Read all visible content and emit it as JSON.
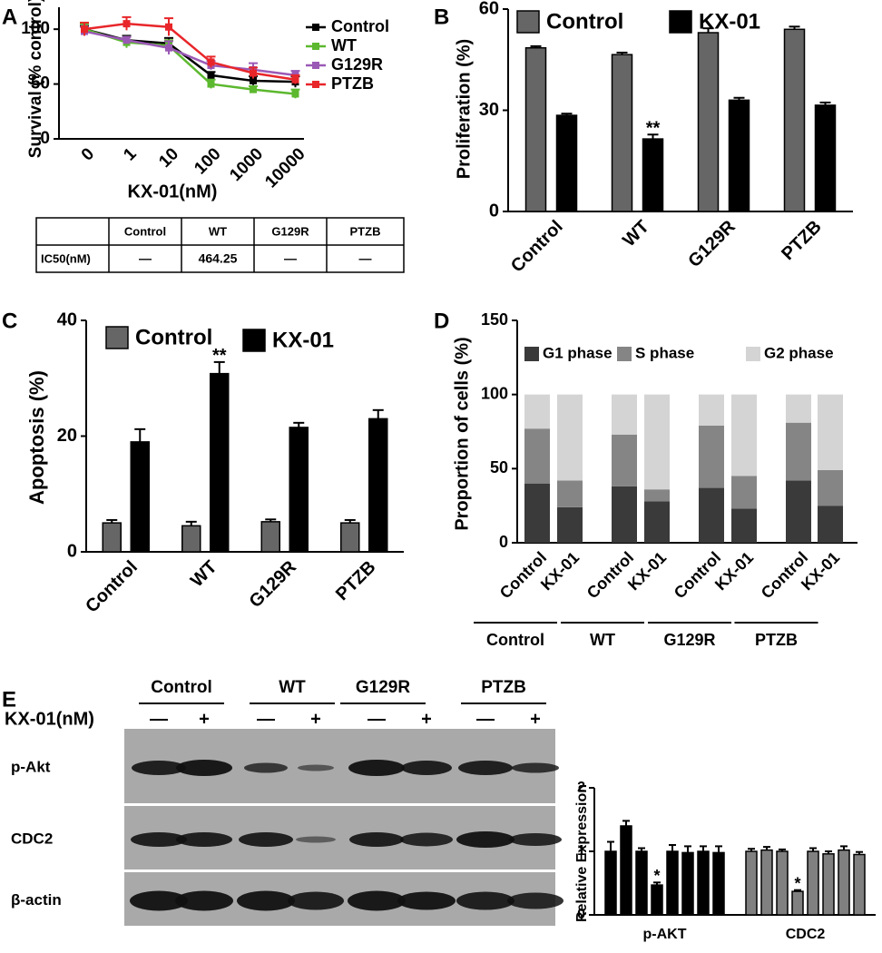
{
  "panels": [
    "A",
    "B",
    "C",
    "D",
    "E"
  ],
  "chart_data": [
    {
      "type": "line",
      "ylabel": "Survival (% control)",
      "xlabel": "KX-01(nM)",
      "categories": [
        "0",
        "1",
        "10",
        "100",
        "1000",
        "10000"
      ],
      "ylim": [
        0,
        120
      ],
      "yticks": [
        0,
        50,
        100
      ],
      "series": [
        {
          "name": "Control",
          "color": "#000000",
          "values": [
            100,
            90,
            87,
            58,
            53,
            52
          ],
          "errors": [
            3,
            4,
            5,
            3,
            4,
            5
          ]
        },
        {
          "name": "WT",
          "color": "#5cb82e",
          "values": [
            100,
            88,
            85,
            50,
            45,
            41
          ],
          "errors": [
            5,
            5,
            5,
            4,
            3,
            4
          ]
        },
        {
          "name": "G129R",
          "color": "#9b59b6",
          "values": [
            98,
            90,
            83,
            67,
            63,
            58
          ],
          "errors": [
            4,
            3,
            6,
            4,
            6,
            4
          ]
        },
        {
          "name": "PTZB",
          "color": "#e8262a",
          "values": [
            100,
            105,
            102,
            70,
            60,
            54
          ],
          "errors": [
            6,
            6,
            8,
            5,
            5,
            4
          ]
        }
      ]
    },
    {
      "type": "bar",
      "ylabel": "Proliferation (%)",
      "categories": [
        "Control",
        "WT",
        "G129R",
        "PTZB"
      ],
      "ylim": [
        0,
        60
      ],
      "yticks": [
        0,
        30,
        60
      ],
      "series": [
        {
          "name": "Control",
          "color": "#666666",
          "values": [
            48.5,
            46.5,
            53,
            54
          ],
          "errors": [
            0.5,
            0.6,
            1.3,
            0.8
          ]
        },
        {
          "name": "KX-01",
          "color": "#000000",
          "values": [
            28.5,
            21.5,
            33,
            31.5
          ],
          "errors": [
            0.5,
            1.3,
            0.7,
            0.8
          ]
        }
      ],
      "annotations": [
        "**"
      ]
    },
    {
      "type": "bar",
      "ylabel": "Apoptosis (%)",
      "categories": [
        "Control",
        "WT",
        "G129R",
        "PTZB"
      ],
      "ylim": [
        0,
        40
      ],
      "yticks": [
        0,
        20,
        40
      ],
      "series": [
        {
          "name": "Control",
          "color": "#666666",
          "values": [
            5,
            4.5,
            5.2,
            5
          ],
          "errors": [
            0.5,
            0.7,
            0.4,
            0.5
          ]
        },
        {
          "name": "KX-01",
          "color": "#000000",
          "values": [
            19,
            30.8,
            21.5,
            23
          ],
          "errors": [
            2.2,
            2,
            0.8,
            1.5
          ]
        }
      ],
      "annotations": [
        "**"
      ]
    },
    {
      "type": "stacked_bar",
      "ylabel": "Proportion of cells (%)",
      "categories": [
        "Control",
        "KX-01",
        "Control",
        "KX-01",
        "Control",
        "KX-01",
        "Control",
        "KX-01"
      ],
      "groups": [
        "Control",
        "WT",
        "G129R",
        "PTZB"
      ],
      "ylim": [
        0,
        150
      ],
      "yticks": [
        0,
        50,
        100,
        150
      ],
      "series": [
        {
          "name": "G1 phase",
          "color": "#3a3a3a",
          "values": [
            40,
            24,
            38,
            28,
            37,
            23,
            42,
            25
          ]
        },
        {
          "name": "S phase",
          "color": "#858585",
          "values": [
            37,
            18,
            35,
            8,
            42,
            22,
            39,
            24
          ]
        },
        {
          "name": "G2 phase",
          "color": "#d4d4d4",
          "values": [
            23,
            58,
            27,
            64,
            21,
            55,
            19,
            51
          ]
        }
      ]
    },
    {
      "type": "bar",
      "ylabel": "Relative Expression",
      "categories": [
        "p-AKT",
        "CDC2"
      ],
      "colors": [
        "#000000",
        "#808080"
      ],
      "ylim": [
        0,
        2
      ],
      "yticks": [
        0,
        1,
        2
      ],
      "series": [
        {
          "values": [
            1.0,
            1.0
          ],
          "errors": [
            0.15,
            0.04
          ]
        },
        {
          "values": [
            1.4,
            1.02
          ],
          "errors": [
            0.08,
            0.05
          ]
        },
        {
          "values": [
            1.0,
            1.0
          ],
          "errors": [
            0.05,
            0.03
          ]
        },
        {
          "values": [
            0.47,
            0.37
          ],
          "errors": [
            0.04,
            0.02
          ]
        },
        {
          "values": [
            1.0,
            1.0
          ],
          "errors": [
            0.1,
            0.05
          ]
        },
        {
          "values": [
            0.98,
            0.96
          ],
          "errors": [
            0.1,
            0.04
          ]
        },
        {
          "values": [
            1.0,
            1.02
          ],
          "errors": [
            0.08,
            0.06
          ]
        },
        {
          "values": [
            0.98,
            0.95
          ],
          "errors": [
            0.1,
            0.04
          ]
        }
      ],
      "annotations": [
        "*",
        "*"
      ]
    }
  ],
  "table": {
    "columns": [
      "Control",
      "WT",
      "G129R",
      "PTZB"
    ],
    "rows": [
      {
        "label": "IC50(nM)",
        "cells": [
          "—",
          "464.25",
          "—",
          "—"
        ]
      }
    ]
  },
  "blot": {
    "treatment_label": "KX-01(nM)",
    "groups": [
      "Control",
      "WT",
      "G129R",
      "PTZB"
    ],
    "treatments": [
      "—",
      "+",
      "—",
      "+",
      "—",
      "+",
      "—",
      "+"
    ],
    "rows": [
      "p-Akt",
      "CDC2",
      "β-actin"
    ]
  }
}
